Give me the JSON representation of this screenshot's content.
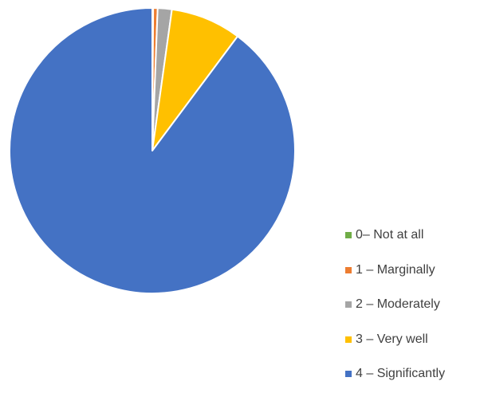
{
  "chart_data": {
    "type": "pie",
    "title": "",
    "categories": [
      "0– Not at all",
      "1 – Marginally",
      "2 – Moderately",
      "3 – Very well",
      "4 – Significantly"
    ],
    "values": [
      0.1,
      0.5,
      1.6,
      8.0,
      89.8
    ],
    "colors": [
      "#70AD47",
      "#ED7D31",
      "#A5A5A5",
      "#FFC000",
      "#4472C4"
    ],
    "start_angle_deg": 0,
    "direction": "clockwise",
    "legend_position": "right-bottom"
  }
}
